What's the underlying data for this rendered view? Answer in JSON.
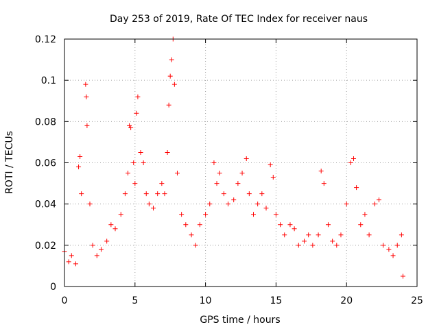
{
  "chart_data": {
    "type": "scatter",
    "title": "Day 253 of 2019, Rate Of TEC Index for receiver naus",
    "xlabel": "GPS time / hours",
    "ylabel": "ROTI / TECUs",
    "xlim": [
      0,
      25
    ],
    "ylim": [
      0,
      0.12
    ],
    "xticks": [
      0,
      5,
      10,
      15,
      20,
      25
    ],
    "yticks": [
      0,
      0.02,
      0.04,
      0.06,
      0.08,
      0.1,
      0.12
    ],
    "xtick_labels": [
      "0",
      "5",
      "10",
      "15",
      "20",
      "25"
    ],
    "ytick_labels": [
      "0",
      "0.02",
      "0.04",
      "0.06",
      "0.08",
      "0.1",
      "0.12"
    ],
    "grid": true,
    "marker": "+",
    "color": "#ff0000",
    "series": [
      {
        "x": [
          0.0,
          0.3,
          0.5,
          0.8,
          1.0,
          1.1,
          1.2,
          1.5,
          1.55,
          1.6,
          1.8,
          2.0,
          2.3,
          2.6,
          3.0,
          3.3,
          3.6,
          4.0,
          4.3,
          4.5,
          4.6,
          4.7,
          4.9,
          5.0,
          5.1,
          5.2,
          5.4,
          5.6,
          5.8,
          6.0,
          6.3,
          6.6,
          6.9,
          7.1,
          7.3,
          7.4,
          7.5,
          7.6,
          7.7,
          7.8,
          8.0,
          8.3,
          8.6,
          9.0,
          9.3,
          9.6,
          10.0,
          10.3,
          10.6,
          10.8,
          11.0,
          11.3,
          11.6,
          12.0,
          12.3,
          12.6,
          12.9,
          13.1,
          13.4,
          13.7,
          14.0,
          14.3,
          14.6,
          14.8,
          15.0,
          15.3,
          15.6,
          16.0,
          16.3,
          16.6,
          17.0,
          17.3,
          17.6,
          18.0,
          18.2,
          18.4,
          18.7,
          19.0,
          19.3,
          19.6,
          20.0,
          20.3,
          20.5,
          20.7,
          21.0,
          21.3,
          21.6,
          22.0,
          22.3,
          22.6,
          23.0,
          23.3,
          23.6,
          23.9,
          24.0
        ],
        "y": [
          0.017,
          0.012,
          0.015,
          0.011,
          0.058,
          0.063,
          0.045,
          0.098,
          0.092,
          0.078,
          0.04,
          0.02,
          0.015,
          0.018,
          0.022,
          0.03,
          0.028,
          0.035,
          0.045,
          0.055,
          0.078,
          0.077,
          0.06,
          0.05,
          0.084,
          0.092,
          0.065,
          0.06,
          0.045,
          0.04,
          0.038,
          0.045,
          0.05,
          0.045,
          0.065,
          0.088,
          0.102,
          0.11,
          0.12,
          0.098,
          0.055,
          0.035,
          0.03,
          0.025,
          0.02,
          0.03,
          0.035,
          0.04,
          0.06,
          0.05,
          0.055,
          0.045,
          0.04,
          0.042,
          0.05,
          0.055,
          0.062,
          0.045,
          0.035,
          0.04,
          0.045,
          0.038,
          0.059,
          0.053,
          0.035,
          0.03,
          0.025,
          0.03,
          0.028,
          0.02,
          0.022,
          0.025,
          0.02,
          0.025,
          0.056,
          0.05,
          0.03,
          0.022,
          0.02,
          0.025,
          0.04,
          0.06,
          0.062,
          0.048,
          0.03,
          0.035,
          0.025,
          0.04,
          0.042,
          0.02,
          0.018,
          0.015,
          0.02,
          0.025,
          0.005
        ]
      }
    ]
  }
}
